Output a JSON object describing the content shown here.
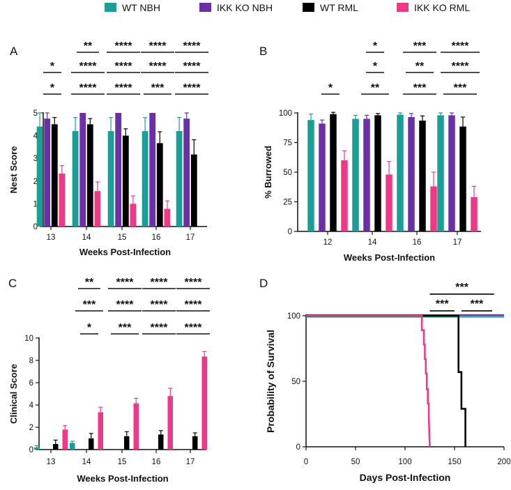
{
  "legend": [
    {
      "name": "WT NBH",
      "color": "#1a9e96"
    },
    {
      "name": "IKK KO NBH",
      "color": "#6b2fa6"
    },
    {
      "name": "WT RML",
      "color": "#000000"
    },
    {
      "name": "IKK KO RML",
      "color": "#ee3a86"
    }
  ],
  "chart_data": [
    {
      "panel": "A",
      "type": "bar",
      "xlabel": "Weeks Post-Infection",
      "ylabel": "Nest Score",
      "ylim": [
        0,
        5
      ],
      "yticks": [
        0,
        1,
        2,
        3,
        4,
        5
      ],
      "categories": [
        "13",
        "14",
        "15",
        "16",
        "17"
      ],
      "series": [
        {
          "name": "WT NBH",
          "values": [
            4.4,
            4.2,
            4.2,
            4.2,
            4.2
          ],
          "errors": [
            0.6,
            0.6,
            0.6,
            0.6,
            0.6
          ]
        },
        {
          "name": "IKK KO NBH",
          "values": [
            4.75,
            5.0,
            5.0,
            5.0,
            4.75
          ],
          "errors": [
            0.25,
            0,
            0,
            0,
            0.25
          ]
        },
        {
          "name": "WT RML",
          "values": [
            4.5,
            4.5,
            4.0,
            3.67,
            3.17
          ],
          "errors": [
            0.3,
            0.25,
            0.3,
            0.5,
            0.65
          ]
        },
        {
          "name": "IKK KO RML",
          "values": [
            2.33,
            1.56,
            1.0,
            0.78,
            0.0
          ],
          "errors": [
            0.35,
            0.4,
            0.35,
            0.35,
            0
          ]
        }
      ],
      "significance": [
        {
          "label": "*",
          "row": 1,
          "from": 0,
          "to": 0
        },
        {
          "label": "*",
          "row": 2,
          "from": 0,
          "to": 0
        },
        {
          "label": "**",
          "row": 0,
          "from": 1,
          "to": 1
        },
        {
          "label": "****",
          "row": 1,
          "from": 1,
          "to": 1
        },
        {
          "label": "****",
          "row": 2,
          "from": 1,
          "to": 1
        },
        {
          "label": "****",
          "row": 0,
          "from": 2,
          "to": 2
        },
        {
          "label": "****",
          "row": 1,
          "from": 2,
          "to": 2
        },
        {
          "label": "****",
          "row": 2,
          "from": 2,
          "to": 2
        },
        {
          "label": "****",
          "row": 0,
          "from": 3,
          "to": 3
        },
        {
          "label": "****",
          "row": 1,
          "from": 3,
          "to": 3
        },
        {
          "label": "***",
          "row": 2,
          "from": 3,
          "to": 3
        },
        {
          "label": "****",
          "row": 0,
          "from": 4,
          "to": 4
        },
        {
          "label": "****",
          "row": 1,
          "from": 4,
          "to": 4
        },
        {
          "label": "****",
          "row": 2,
          "from": 4,
          "to": 4
        }
      ]
    },
    {
      "panel": "B",
      "type": "bar",
      "xlabel": "Weeks Post-Infection",
      "ylabel": "% Burrowed",
      "ylim": [
        0,
        100
      ],
      "yticks": [
        0,
        25,
        50,
        75,
        100
      ],
      "categories": [
        "12",
        "14",
        "16",
        "17"
      ],
      "series": [
        {
          "name": "WT NBH",
          "values": [
            94,
            95,
            98.5,
            98
          ],
          "errors": [
            5,
            3,
            1.5,
            2
          ]
        },
        {
          "name": "IKK KO NBH",
          "values": [
            91,
            95,
            96.5,
            98
          ],
          "errors": [
            3,
            3,
            3,
            2
          ]
        },
        {
          "name": "WT RML",
          "values": [
            99,
            98,
            93.5,
            88.5
          ],
          "errors": [
            1.5,
            1.5,
            4,
            8
          ]
        },
        {
          "name": "IKK KO RML",
          "values": [
            60,
            48,
            38,
            29
          ],
          "errors": [
            8,
            11,
            12,
            9
          ]
        }
      ],
      "significance": [
        {
          "label": "*",
          "row": 2,
          "from": 0,
          "to": 0
        },
        {
          "label": "*",
          "row": 0,
          "from": 1,
          "to": 1
        },
        {
          "label": "*",
          "row": 1,
          "from": 1,
          "to": 1
        },
        {
          "label": "**",
          "row": 2,
          "from": 1,
          "to": 1
        },
        {
          "label": "***",
          "row": 0,
          "from": 2,
          "to": 2
        },
        {
          "label": "**",
          "row": 1,
          "from": 2,
          "to": 2
        },
        {
          "label": "***",
          "row": 2,
          "from": 2,
          "to": 2
        },
        {
          "label": "****",
          "row": 0,
          "from": 3,
          "to": 3
        },
        {
          "label": "****",
          "row": 1,
          "from": 3,
          "to": 3
        },
        {
          "label": "***",
          "row": 2,
          "from": 3,
          "to": 3
        }
      ]
    },
    {
      "panel": "C",
      "type": "bar",
      "xlabel": "Weeks Post-Infection",
      "ylabel": "Clinical Score",
      "ylim": [
        0,
        10
      ],
      "yticks": [
        0,
        2,
        4,
        6,
        8,
        10
      ],
      "categories": [
        "13",
        "14",
        "15",
        "16",
        "17"
      ],
      "series": [
        {
          "name": "WT NBH",
          "values": [
            0.2,
            0.6,
            0,
            0,
            0
          ],
          "errors": [
            0.15,
            0.15,
            0,
            0,
            0
          ]
        },
        {
          "name": "IKK KO NBH",
          "values": [
            0,
            0,
            0,
            0,
            0
          ],
          "errors": [
            0,
            0,
            0,
            0,
            0
          ]
        },
        {
          "name": "WT RML",
          "values": [
            0.5,
            1.0,
            1.2,
            1.35,
            1.2
          ],
          "errors": [
            0.35,
            0.45,
            0.4,
            0.35,
            0.3
          ]
        },
        {
          "name": "IKK KO RML",
          "values": [
            1.8,
            3.35,
            4.15,
            4.8,
            8.35
          ],
          "errors": [
            0.35,
            0.45,
            0.45,
            0.7,
            0.45
          ]
        }
      ],
      "significance": [
        {
          "label": "**",
          "row": 0,
          "from": 1,
          "to": 1
        },
        {
          "label": "***",
          "row": 1,
          "from": 1,
          "to": 1
        },
        {
          "label": "*",
          "row": 2,
          "from": 1,
          "to": 1
        },
        {
          "label": "****",
          "row": 0,
          "from": 2,
          "to": 2
        },
        {
          "label": "****",
          "row": 1,
          "from": 2,
          "to": 2
        },
        {
          "label": "***",
          "row": 2,
          "from": 2,
          "to": 2
        },
        {
          "label": "****",
          "row": 0,
          "from": 3,
          "to": 3
        },
        {
          "label": "****",
          "row": 1,
          "from": 3,
          "to": 3
        },
        {
          "label": "****",
          "row": 2,
          "from": 3,
          "to": 3
        },
        {
          "label": "****",
          "row": 0,
          "from": 4,
          "to": 4
        },
        {
          "label": "****",
          "row": 1,
          "from": 4,
          "to": 4
        },
        {
          "label": "****",
          "row": 2,
          "from": 4,
          "to": 4
        }
      ]
    },
    {
      "panel": "D",
      "type": "line",
      "subtype": "survival-step",
      "xlabel": "Days Post-Infection",
      "ylabel": "Probability of Survival",
      "xlim": [
        0,
        200
      ],
      "ylim": [
        0,
        100
      ],
      "xticks": [
        0,
        50,
        100,
        150,
        200
      ],
      "yticks": [
        0,
        50,
        100
      ],
      "series": [
        {
          "name": "WT NBH",
          "x": [
            0,
            200
          ],
          "y": [
            100,
            100
          ]
        },
        {
          "name": "IKK KO NBH",
          "x": [
            0,
            200
          ],
          "y": [
            100,
            100
          ]
        },
        {
          "name": "WT RML",
          "x": [
            0,
            154,
            154,
            157,
            157,
            161,
            161
          ],
          "y": [
            100,
            100,
            57,
            57,
            29,
            29,
            0
          ]
        },
        {
          "name": "IKK KO RML",
          "x": [
            0,
            117,
            117,
            119,
            119,
            120,
            120,
            121,
            121,
            122,
            122,
            123,
            123,
            124,
            124,
            125
          ],
          "y": [
            100,
            100,
            89,
            89,
            78,
            78,
            67,
            67,
            56,
            56,
            44,
            44,
            33,
            33,
            22,
            0
          ]
        }
      ],
      "significance": [
        {
          "label": "***",
          "row": 0,
          "x0": 125,
          "x1": 190
        },
        {
          "label": "***",
          "row": 1,
          "x0": 125,
          "x1": 150
        },
        {
          "label": "***",
          "row": 1,
          "x0": 157,
          "x1": 188
        }
      ]
    }
  ]
}
